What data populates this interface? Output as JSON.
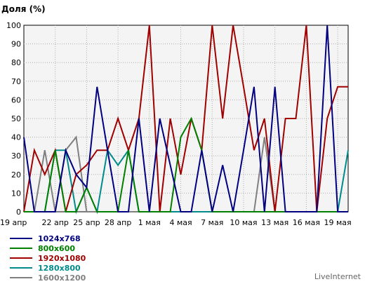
{
  "chart_data": {
    "type": "line",
    "title": "Доля (%)",
    "ylim": [
      0,
      100
    ],
    "yticks": [
      0,
      10,
      20,
      30,
      40,
      50,
      60,
      70,
      80,
      90,
      100
    ],
    "grid": true,
    "x": [
      "19 апр",
      "20 апр",
      "21 апр",
      "22 апр",
      "23 апр",
      "24 апр",
      "25 апр",
      "26 апр",
      "27 апр",
      "28 апр",
      "29 апр",
      "30 апр",
      "1 мая",
      "2 мая",
      "3 мая",
      "4 мая",
      "5 мая",
      "6 мая",
      "7 мая",
      "8 мая",
      "9 мая",
      "10 мая",
      "11 мая",
      "12 мая",
      "13 мая",
      "14 мая",
      "15 мая",
      "16 мая",
      "17 мая",
      "18 мая",
      "19 мая",
      "20 мая"
    ],
    "xtick_labels": [
      "19 апр",
      "22 апр",
      "25 апр",
      "28 апр",
      "1 мая",
      "4 мая",
      "7 мая",
      "10 мая",
      "13 мая",
      "16 мая",
      "19 мая"
    ],
    "legend_position": "bottom-left",
    "series": [
      {
        "name": "1024x768",
        "color": "#000080",
        "values": [
          40,
          0,
          0,
          0,
          33,
          20,
          13,
          67,
          33,
          0,
          0,
          50,
          0,
          50,
          25,
          0,
          0,
          33,
          0,
          25,
          0,
          33,
          67,
          0,
          67,
          0,
          0,
          0,
          0,
          100,
          0,
          0
        ]
      },
      {
        "name": "800x600",
        "color": "#008000",
        "values": [
          0,
          0,
          0,
          33,
          0,
          0,
          13,
          0,
          0,
          0,
          33,
          0,
          0,
          0,
          0,
          40,
          50,
          33,
          0,
          0,
          0,
          0,
          0,
          0,
          0,
          0,
          0,
          0,
          0,
          0,
          0,
          0
        ]
      },
      {
        "name": "1920x1080",
        "color": "#a00000",
        "values": [
          0,
          33,
          20,
          33,
          0,
          20,
          25,
          33,
          33,
          50,
          33,
          50,
          100,
          0,
          50,
          20,
          50,
          33,
          100,
          50,
          100,
          67,
          33,
          50,
          0,
          50,
          50,
          100,
          0,
          50,
          67,
          67
        ]
      },
      {
        "name": "1280x800",
        "color": "#008b8b",
        "values": [
          0,
          0,
          0,
          33,
          33,
          0,
          13,
          0,
          33,
          25,
          33,
          0,
          0,
          0,
          0,
          0,
          0,
          0,
          0,
          0,
          0,
          0,
          0,
          0,
          0,
          0,
          0,
          0,
          0,
          0,
          0,
          33
        ]
      },
      {
        "name": "1600x1200",
        "color": "#808080",
        "values": [
          0,
          0,
          33,
          0,
          33,
          40,
          0,
          0,
          0,
          0,
          0,
          0,
          0,
          0,
          0,
          0,
          0,
          0,
          0,
          0,
          0,
          0,
          0,
          40,
          0,
          0,
          0,
          0,
          0,
          0,
          0,
          0
        ]
      }
    ]
  },
  "brand": "LiveInternet"
}
